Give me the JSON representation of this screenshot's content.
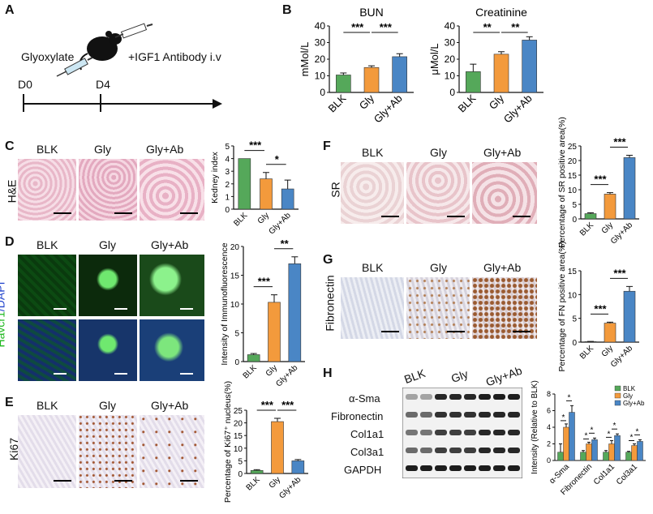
{
  "panel_labels": {
    "a": "A",
    "b": "B",
    "c": "C",
    "d": "D",
    "e": "E",
    "f": "F",
    "g": "G",
    "h": "H"
  },
  "schematic": {
    "glyoxylate": "Glyoxylate",
    "antibody": "+IGF1 Antibody i.v",
    "d0": "D0",
    "d4": "D4"
  },
  "groups": [
    "BLK",
    "Gly",
    "Gly+Ab"
  ],
  "rows": {
    "he": "H&E",
    "havcr1": "Havcr1",
    "dapi": "/DAPI",
    "ki67": "Ki67",
    "sr": "SR",
    "fibronectin": "Fibronectin"
  },
  "western": {
    "proteins": [
      "α-Sma",
      "Fibronectin",
      "Col1a1",
      "Col3a1",
      "GAPDH"
    ]
  },
  "colors": {
    "blk": "#55a85a",
    "gly": "#f39a3c",
    "glyab": "#4a86c5"
  },
  "chart_data": [
    {
      "id": "bun",
      "type": "bar",
      "title": "BUN",
      "ylabel": "mMol/L",
      "ylim": [
        0,
        40
      ],
      "yticks": [
        0,
        10,
        20,
        30,
        40
      ],
      "categories": [
        "BLK",
        "Gly",
        "Gly+Ab"
      ],
      "values": [
        10.5,
        15,
        21.5
      ],
      "errors": [
        1.2,
        1.0,
        1.8
      ],
      "significance": [
        {
          "from": 0,
          "to": 1,
          "label": "***"
        },
        {
          "from": 1,
          "to": 2,
          "label": "***"
        }
      ]
    },
    {
      "id": "creat",
      "type": "bar",
      "title": "Creatinine",
      "ylabel": "μMol/L",
      "ylim": [
        0,
        40
      ],
      "yticks": [
        0,
        10,
        20,
        30,
        40
      ],
      "categories": [
        "BLK",
        "Gly",
        "Gly+Ab"
      ],
      "values": [
        12.5,
        23,
        31.5
      ],
      "errors": [
        4.5,
        1.5,
        2.0
      ],
      "significance": [
        {
          "from": 0,
          "to": 1,
          "label": "**"
        },
        {
          "from": 1,
          "to": 2,
          "label": "**"
        }
      ]
    },
    {
      "id": "kidney",
      "type": "bar",
      "title": "",
      "ylabel": "Kedney index",
      "ylim": [
        0,
        5
      ],
      "yticks": [
        0,
        1,
        2,
        3,
        4,
        5
      ],
      "categories": [
        "BLK",
        "Gly",
        "Gly+Ab"
      ],
      "values": [
        4.0,
        2.4,
        1.6
      ],
      "errors": [
        0,
        0.5,
        0.7
      ],
      "significance": [
        {
          "from": 0,
          "to": 1,
          "label": "***"
        },
        {
          "from": 1,
          "to": 2,
          "label": "*"
        }
      ]
    },
    {
      "id": "if",
      "type": "bar",
      "title": "",
      "ylabel": "Intensity of Immunofluorescence",
      "ylim": [
        0,
        20
      ],
      "yticks": [
        0,
        5,
        10,
        15,
        20
      ],
      "categories": [
        "BLK",
        "Gly",
        "Gly+Ab"
      ],
      "values": [
        1.2,
        10.3,
        17.0
      ],
      "errors": [
        0.2,
        1.3,
        1.2
      ],
      "significance": [
        {
          "from": 0,
          "to": 1,
          "label": "***"
        },
        {
          "from": 1,
          "to": 2,
          "label": "**"
        }
      ]
    },
    {
      "id": "ki67",
      "type": "bar",
      "title": "",
      "ylabel": "Percentage of Ki67⁺ nucleus(%)",
      "ylim": [
        0,
        25
      ],
      "yticks": [
        0,
        5,
        10,
        15,
        20,
        25
      ],
      "categories": [
        "BLK",
        "Gly",
        "Gly+Ab"
      ],
      "values": [
        1.2,
        20.5,
        5.0
      ],
      "errors": [
        0.3,
        1.3,
        0.5
      ],
      "significance": [
        {
          "from": 0,
          "to": 1,
          "label": "***"
        },
        {
          "from": 1,
          "to": 2,
          "label": "***"
        }
      ]
    },
    {
      "id": "sr",
      "type": "bar",
      "title": "",
      "ylabel": "Percentage of SR positive area(%)",
      "ylim": [
        0,
        25
      ],
      "yticks": [
        0,
        5,
        10,
        15,
        20,
        25
      ],
      "categories": [
        "BLK",
        "Gly",
        "Gly+Ab"
      ],
      "values": [
        1.8,
        8.5,
        21.0
      ],
      "errors": [
        0.3,
        0.5,
        0.8
      ],
      "significance": [
        {
          "from": 0,
          "to": 1,
          "label": "***"
        },
        {
          "from": 1,
          "to": 2,
          "label": "***"
        }
      ]
    },
    {
      "id": "fn",
      "type": "bar",
      "title": "",
      "ylabel": "Percentage of FN positive area(%)",
      "ylim": [
        0,
        15
      ],
      "yticks": [
        0,
        5,
        10,
        15
      ],
      "categories": [
        "BLK",
        "Gly",
        "Gly+Ab"
      ],
      "values": [
        0.1,
        4.0,
        10.7
      ],
      "errors": [
        0.05,
        0.2,
        1.0
      ],
      "significance": [
        {
          "from": 0,
          "to": 1,
          "label": "***"
        },
        {
          "from": 1,
          "to": 2,
          "label": "***"
        }
      ]
    },
    {
      "id": "wb",
      "type": "bar",
      "title": "",
      "ylabel": "Intensity (Relative to BLK)",
      "ylim": [
        0,
        8
      ],
      "yticks": [
        0,
        2,
        4,
        6,
        8
      ],
      "categories": [
        "α-Sma",
        "Fibronectin",
        "Col1a1",
        "Col3a1"
      ],
      "series": [
        {
          "name": "BLK",
          "values": [
            1.0,
            1.0,
            1.0,
            1.0
          ],
          "errors": [
            1.0,
            0.2,
            0.2,
            0.1
          ]
        },
        {
          "name": "Gly",
          "values": [
            4.0,
            2.0,
            2.0,
            1.8
          ],
          "errors": [
            0.4,
            0.2,
            0.4,
            0.2
          ]
        },
        {
          "name": "Gly+Ab",
          "values": [
            5.8,
            2.5,
            3.0,
            2.3
          ],
          "errors": [
            0.8,
            0.2,
            0.2,
            0.2
          ]
        }
      ],
      "legend": "top-right"
    }
  ]
}
